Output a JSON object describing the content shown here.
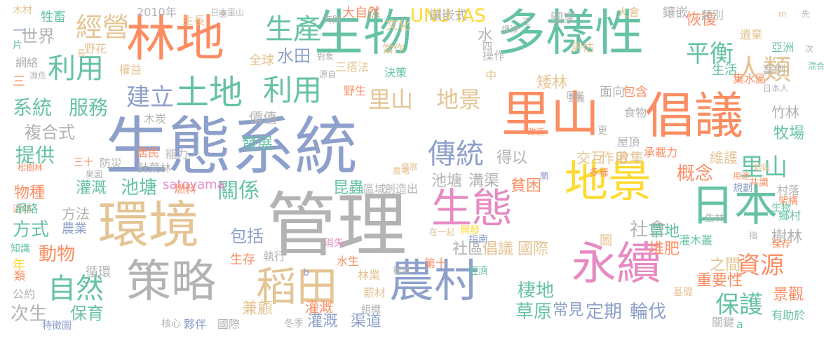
{
  "palette": {
    "green": "#66c2a5",
    "orange": "#fc8d62",
    "blue": "#8da0cb",
    "pink": "#e78ac3",
    "lime": "#a6d854",
    "yellow": "#ffd92f",
    "tan": "#e5c494",
    "gray": "#b3b3b3"
  },
  "words": [
    "生物",
    "多樣性",
    "林地",
    "生態系統",
    "管理",
    "里山",
    "倡議",
    "地景",
    "日本",
    "環境",
    "策略",
    "稻田",
    "農村",
    "永續",
    "生態",
    "土地",
    "利用",
    "生產",
    "經營",
    "平衡",
    "人類",
    "利用",
    "里山",
    "地景",
    "建立",
    "傳統",
    "資源",
    "自然",
    "保護",
    "系統",
    "服務",
    "提供",
    "里山",
    "概念",
    "牧場",
    "複合式",
    "世界",
    "水田",
    "水",
    "關係",
    "池塘",
    "灌溉",
    "物種",
    "方式",
    "動物",
    "包括",
    "社會",
    "社區",
    "倡議",
    "國際",
    "草原",
    "定期",
    "輪伐",
    "棲地",
    "景觀",
    "次生",
    "保育",
    "灌溉",
    "渠道",
    "得以",
    "溝渠",
    "池塘",
    "貧困",
    "UNU IAS",
    "satoyama",
    "昆蟲",
    "堆肥",
    "草地",
    "樹林",
    "矮林",
    "恢復",
    "作用",
    "交互",
    "收集",
    "維護",
    "竹林",
    "重要性",
    "常見",
    "之間",
    "生存",
    "兼顧",
    "圖",
    "價值",
    "發展",
    "生活",
    "食物",
    "屋頂",
    "承載力",
    "包含",
    "面向",
    "亞洲",
    "遺棄",
    "集水區",
    "案例",
    "評估",
    "國家",
    "鑲嵌",
    "類別",
    "大會",
    "生長",
    "牲畜",
    "木材",
    "2010年",
    "網絡",
    "野花",
    "權益",
    "全球",
    "文化",
    "大自然",
    "鑲嵌式",
    "決策",
    "三搭法",
    "操作",
    "四",
    "中",
    "野生",
    "當作",
    "針葉林",
    "防災",
    "木炭",
    "居民",
    "燃料",
    "能力",
    "村落",
    "共識",
    "規劃",
    "架構",
    "鄉村",
    "保存",
    "灌木叢",
    "近年",
    "知識",
    "年",
    "公約",
    "類",
    "方法",
    "農業",
    "循環",
    "特徵圖",
    "核心",
    "夥伴",
    "國際",
    "冬季",
    "灌溉",
    "林業",
    "薪材",
    "組織",
    "水生",
    "消失",
    "執行",
    "有助於",
    "關鍵",
    "基礎",
    "a",
    "b",
    "第十",
    "經濟",
    "指南",
    "區域",
    "創造出",
    "開發",
    "在一起",
    "生物",
    "日本人",
    "混合",
    "次",
    "先",
    "m",
    "松樹林",
    "三十",
    "果園",
    "一",
    "片",
    "長",
    "正",
    "蘭",
    "三",
    "瀕危",
    "網絡",
    "日本里山",
    "應",
    "時間",
    "對象",
    "源自",
    "課祿",
    "更",
    "圖案",
    "定義",
    "種類",
    "改造",
    "指",
    "生林",
    "用途",
    "多樣",
    "地區",
    "發展",
    "農場",
    "灌溉"
  ]
}
